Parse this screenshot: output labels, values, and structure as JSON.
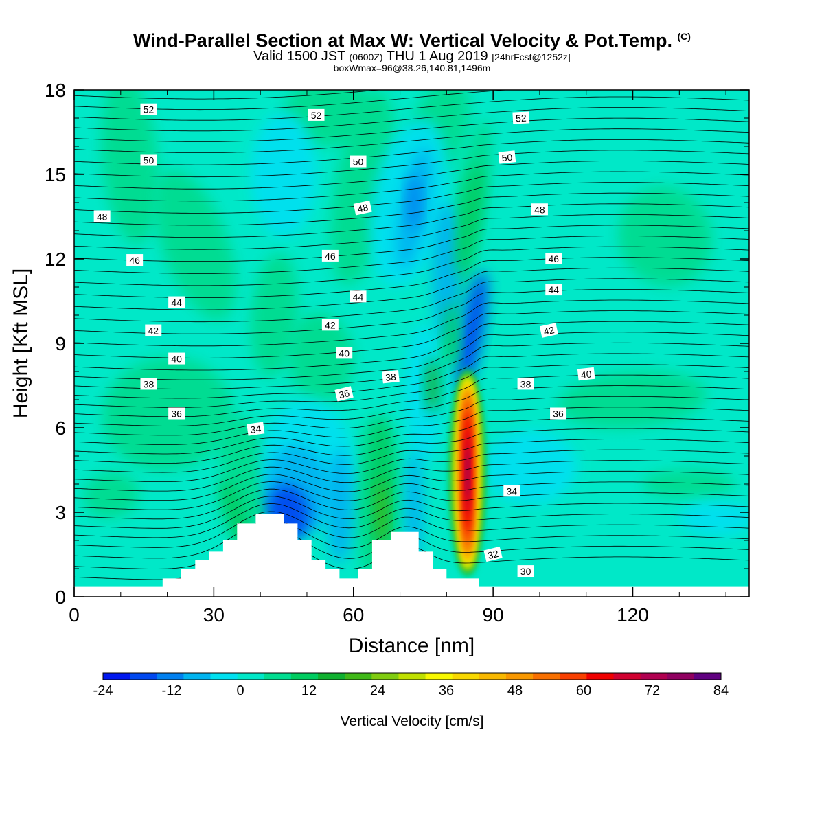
{
  "header": {
    "title": "Wind-Parallel Section at Max W: Vertical Velocity & Pot.Temp.",
    "title_tag": "(C)",
    "valid_prefix": "Valid 1500 JST",
    "valid_z": "(0600Z)",
    "valid_date": "THU 1 Aug 2019",
    "forecast": "[24hrFcst@1252z]",
    "boxwmax": "boxWmax=96@38.26,140.81,1496m"
  },
  "chart_data": {
    "type": "heatmap",
    "xlabel": "Distance [nm]",
    "ylabel": "Height [Kft MSL]",
    "xlim": [
      0,
      145
    ],
    "ylim": [
      0,
      18
    ],
    "xticks": [
      0,
      30,
      60,
      90,
      120
    ],
    "yticks": [
      0,
      3,
      6,
      9,
      12,
      15,
      18
    ],
    "colorbar": {
      "label": "Vertical Velocity [cm/s]",
      "ticks": [
        -24,
        -12,
        0,
        12,
        24,
        36,
        48,
        60,
        72,
        84
      ],
      "range": [
        -24,
        84
      ],
      "colors": [
        "#0018f0",
        "#0048f0",
        "#0080f0",
        "#00b4f0",
        "#00e0f0",
        "#00e8c8",
        "#00dc90",
        "#00cc60",
        "#10b030",
        "#40b818",
        "#80cc10",
        "#c0e000",
        "#f8f800",
        "#f8d800",
        "#f8b800",
        "#f89800",
        "#f87000",
        "#f84000",
        "#f00000",
        "#d00030",
        "#b00050",
        "#900060",
        "#600080"
      ]
    },
    "theta_contours": {
      "labels": [
        52,
        50,
        48,
        46,
        44,
        42,
        40,
        38,
        36,
        34,
        32,
        30
      ],
      "units": "C"
    },
    "terrain_kft": [
      [
        0,
        0.35
      ],
      [
        19,
        0.35
      ],
      [
        19,
        0.65
      ],
      [
        23,
        0.65
      ],
      [
        23,
        1.0
      ],
      [
        26,
        1.0
      ],
      [
        26,
        1.3
      ],
      [
        29,
        1.3
      ],
      [
        29,
        1.6
      ],
      [
        32,
        1.6
      ],
      [
        32,
        2.0
      ],
      [
        35,
        2.0
      ],
      [
        35,
        2.6
      ],
      [
        39,
        2.6
      ],
      [
        39,
        2.95
      ],
      [
        45,
        2.95
      ],
      [
        45,
        2.6
      ],
      [
        48,
        2.6
      ],
      [
        48,
        2.0
      ],
      [
        51,
        2.0
      ],
      [
        51,
        1.3
      ],
      [
        54,
        1.3
      ],
      [
        54,
        1.0
      ],
      [
        57,
        1.0
      ],
      [
        57,
        0.65
      ],
      [
        61,
        0.65
      ],
      [
        61,
        1.0
      ],
      [
        64,
        1.0
      ],
      [
        64,
        2.0
      ],
      [
        68,
        2.0
      ],
      [
        68,
        2.3
      ],
      [
        74,
        2.3
      ],
      [
        74,
        1.6
      ],
      [
        77,
        1.6
      ],
      [
        77,
        1.0
      ],
      [
        80,
        1.0
      ],
      [
        80,
        0.65
      ],
      [
        87,
        0.65
      ],
      [
        87,
        0.35
      ],
      [
        145,
        0.35
      ]
    ],
    "w_features": [
      {
        "x": 84.5,
        "y": 4.2,
        "w_max": 84,
        "note": "updraft core"
      },
      {
        "x": 85,
        "y": 9.0,
        "w_min": -24,
        "note": "downdraft aloft"
      },
      {
        "x": 47,
        "y": 3.0,
        "w_min": -20,
        "note": "lee-side downdraft"
      },
      {
        "x": 66,
        "y": 3.5,
        "w_max": 24,
        "note": "updraft"
      }
    ]
  }
}
